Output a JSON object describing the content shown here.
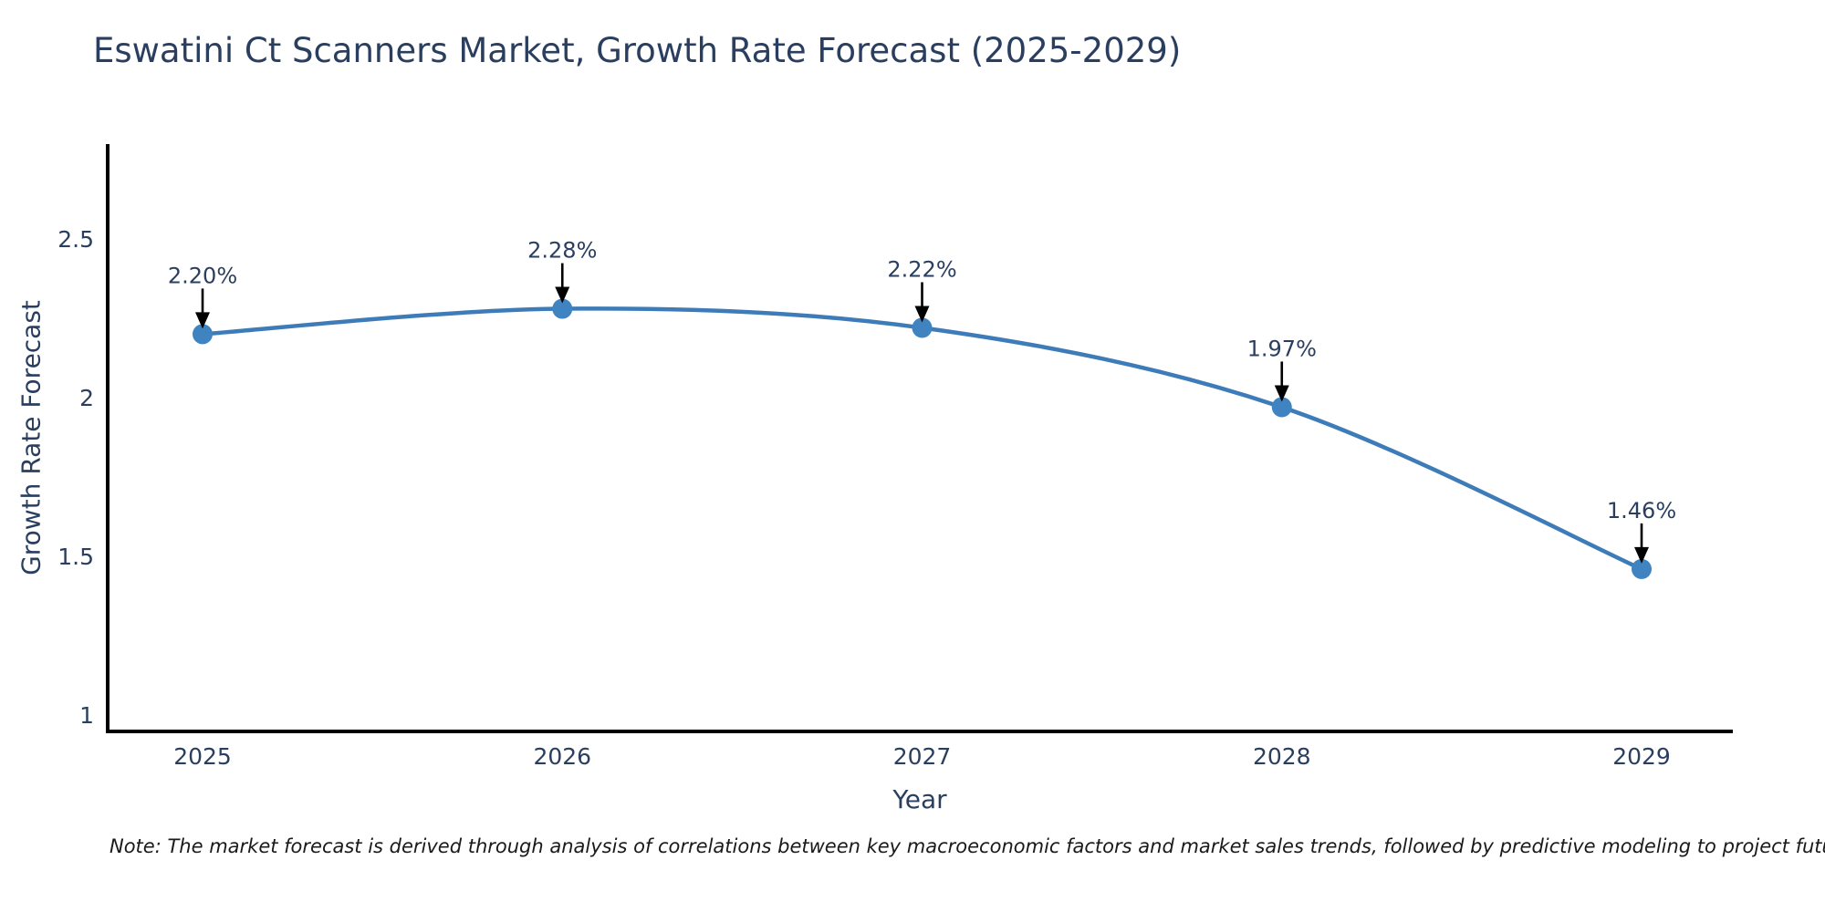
{
  "title": "Eswatini Ct Scanners Market, Growth Rate Forecast (2025-2029)",
  "note": "Note: The market forecast is derived through analysis of correlations between key macroeconomic factors and market sales trends, followed by predictive modeling to project future sales",
  "chart_data": {
    "type": "line",
    "title": "Eswatini Ct Scanners Market, Growth Rate Forecast (2025-2029)",
    "xlabel": "Year",
    "ylabel": "Growth Rate Forecast",
    "x": [
      2025,
      2026,
      2027,
      2028,
      2029
    ],
    "values": [
      2.2,
      2.28,
      2.22,
      1.97,
      1.46
    ],
    "point_labels": [
      "2.20%",
      "2.28%",
      "2.22%",
      "1.97%",
      "1.46%"
    ],
    "y_ticks": [
      1,
      1.5,
      2,
      2.5
    ],
    "y_tick_labels": [
      "1",
      "1.5",
      "2",
      "2.5"
    ],
    "x_tick_labels": [
      "2025",
      "2026",
      "2027",
      "2028",
      "2029"
    ],
    "ylim": [
      0.95,
      2.79
    ],
    "grid": false,
    "legend_position": "none",
    "curve": "spline",
    "colors": {
      "line": "#3d7cb8",
      "marker": "#3f83c0",
      "axis": "#000000",
      "text": "#2a3f5f",
      "annotation_arrow": "#000000"
    }
  }
}
